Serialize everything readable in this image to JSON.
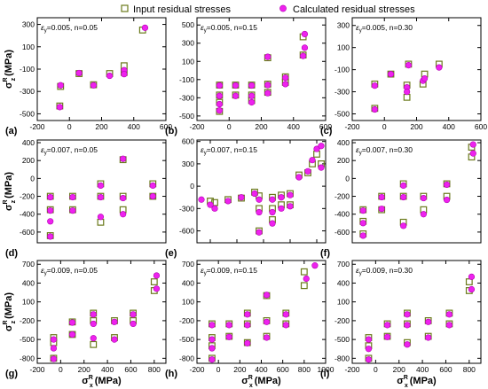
{
  "legend": {
    "input_label": "Input residual stresses",
    "calc_label": "Calculated residual stresses"
  },
  "colors": {
    "input_marker": "#6b7a1c",
    "calc_marker": "#ee22ee"
  },
  "axis_labels": {
    "y": {
      "main": "σ",
      "sup": "R",
      "sub": "z",
      "unit": "(MPa)"
    },
    "x": {
      "main": "σ",
      "sup": "R",
      "sub": "x",
      "unit": "(MPa)"
    }
  },
  "chart_data": [
    {
      "panel": "(a)",
      "type": "scatter",
      "annotation": {
        "eps_sym": "ε",
        "eps_sub": "y",
        "text": "=0.005, n=0.05"
      },
      "xlim": [
        -200,
        600
      ],
      "ylim": [
        -560,
        360
      ],
      "xticks": [
        -200,
        0,
        200,
        400,
        600
      ],
      "yticks": [
        -500,
        -300,
        -100,
        100,
        300
      ],
      "show_xticklabels": true,
      "input": [
        [
          -60,
          -430
        ],
        [
          -55,
          -255
        ],
        [
          60,
          -140
        ],
        [
          150,
          -240
        ],
        [
          250,
          -140
        ],
        [
          340,
          -70
        ],
        [
          340,
          -130
        ],
        [
          455,
          250
        ]
      ],
      "calculated": [
        [
          -60,
          -440
        ],
        [
          -55,
          -245
        ],
        [
          60,
          -135
        ],
        [
          150,
          -245
        ],
        [
          250,
          -160
        ],
        [
          340,
          -110
        ],
        [
          340,
          -145
        ],
        [
          470,
          270
        ]
      ]
    },
    {
      "panel": "(b)",
      "type": "scatter",
      "annotation": {
        "eps_sym": "ε",
        "eps_sub": "y",
        "text": "=0.005, n=0.15"
      },
      "xlim": [
        -200,
        600
      ],
      "ylim": [
        -550,
        580
      ],
      "xticks": [
        -200,
        0,
        200,
        400,
        600
      ],
      "yticks": [
        -500,
        -300,
        -100,
        100,
        300,
        500
      ],
      "show_xticklabels": true,
      "input": [
        [
          -60,
          -160
        ],
        [
          -60,
          -270
        ],
        [
          -60,
          -350
        ],
        [
          -60,
          -450
        ],
        [
          40,
          -160
        ],
        [
          40,
          -270
        ],
        [
          140,
          -160
        ],
        [
          140,
          -270
        ],
        [
          140,
          -330
        ],
        [
          240,
          -150
        ],
        [
          240,
          -240
        ],
        [
          240,
          140
        ],
        [
          350,
          -130
        ],
        [
          350,
          -70
        ],
        [
          460,
          370
        ],
        [
          460,
          170
        ]
      ],
      "calculated": [
        [
          -60,
          -165
        ],
        [
          -60,
          -280
        ],
        [
          -60,
          -370
        ],
        [
          -60,
          -440
        ],
        [
          40,
          -165
        ],
        [
          40,
          -280
        ],
        [
          140,
          -165
        ],
        [
          140,
          -280
        ],
        [
          140,
          -350
        ],
        [
          240,
          -160
        ],
        [
          240,
          -250
        ],
        [
          240,
          150
        ],
        [
          350,
          -150
        ],
        [
          350,
          -80
        ],
        [
          470,
          400
        ],
        [
          470,
          250
        ],
        [
          460,
          160
        ]
      ]
    },
    {
      "panel": "(c)",
      "type": "scatter",
      "annotation": {
        "eps_sym": "ε",
        "eps_sub": "y",
        "text": "=0.005, n=0.30"
      },
      "xlim": [
        -200,
        600
      ],
      "ylim": [
        -560,
        370
      ],
      "xticks": [
        -200,
        0,
        200,
        400,
        600
      ],
      "yticks": [
        -500,
        -300,
        -100,
        100,
        300
      ],
      "show_xticklabels": true,
      "input": [
        [
          -60,
          -450
        ],
        [
          -60,
          -230
        ],
        [
          40,
          -140
        ],
        [
          140,
          -240
        ],
        [
          140,
          -350
        ],
        [
          150,
          -50
        ],
        [
          240,
          -230
        ],
        [
          250,
          -140
        ],
        [
          340,
          -50
        ]
      ],
      "calculated": [
        [
          -60,
          -460
        ],
        [
          -60,
          -245
        ],
        [
          40,
          -140
        ],
        [
          140,
          -260
        ],
        [
          140,
          -300
        ],
        [
          150,
          -60
        ],
        [
          240,
          -200
        ],
        [
          250,
          -180
        ],
        [
          340,
          -80
        ]
      ]
    },
    {
      "panel": "(d)",
      "type": "scatter",
      "annotation": {
        "eps_sym": "ε",
        "eps_sub": "y",
        "text": "=0.007, n=0.05"
      },
      "xlim": [
        -130,
        560
      ],
      "ylim": [
        -720,
        430
      ],
      "xticks": [],
      "yticks": [
        -600,
        -400,
        -200,
        0,
        200,
        400
      ],
      "show_xticklabels": false,
      "input": [
        [
          -60,
          -640
        ],
        [
          -60,
          -350
        ],
        [
          -60,
          -200
        ],
        [
          60,
          -200
        ],
        [
          60,
          -350
        ],
        [
          210,
          -60
        ],
        [
          210,
          -200
        ],
        [
          210,
          -490
        ],
        [
          330,
          -200
        ],
        [
          330,
          -350
        ],
        [
          330,
          210
        ],
        [
          490,
          -60
        ],
        [
          490,
          -200
        ]
      ],
      "calculated": [
        [
          -60,
          -650
        ],
        [
          -60,
          -480
        ],
        [
          -60,
          -360
        ],
        [
          -60,
          -210
        ],
        [
          60,
          -210
        ],
        [
          60,
          -360
        ],
        [
          210,
          -80
        ],
        [
          210,
          -210
        ],
        [
          210,
          -430
        ],
        [
          330,
          -220
        ],
        [
          330,
          -400
        ],
        [
          330,
          220
        ],
        [
          490,
          -80
        ],
        [
          490,
          -200
        ]
      ]
    },
    {
      "panel": "(e)",
      "type": "scatter",
      "annotation": {
        "eps_sym": "ε",
        "eps_sub": "y",
        "text": "=0.007, n=0.15"
      },
      "xlim": [
        -750,
        700
      ],
      "ylim": [
        -760,
        620
      ],
      "xticks": [
        -600,
        -300,
        0,
        300,
        600
      ],
      "yticks": [
        -600,
        -300,
        0,
        300,
        600
      ],
      "show_xticklabels": false,
      "input": [
        [
          -600,
          -200
        ],
        [
          -550,
          -220
        ],
        [
          -400,
          -180
        ],
        [
          -250,
          -160
        ],
        [
          -100,
          -80
        ],
        [
          -50,
          -130
        ],
        [
          -50,
          -300
        ],
        [
          -50,
          -600
        ],
        [
          100,
          -150
        ],
        [
          100,
          -300
        ],
        [
          100,
          -450
        ],
        [
          200,
          -120
        ],
        [
          200,
          -250
        ],
        [
          300,
          -100
        ],
        [
          300,
          -250
        ],
        [
          400,
          150
        ],
        [
          500,
          180
        ],
        [
          550,
          300
        ],
        [
          600,
          430
        ],
        [
          650,
          300
        ]
      ],
      "calculated": [
        [
          -700,
          -180
        ],
        [
          -600,
          -250
        ],
        [
          -550,
          -300
        ],
        [
          -400,
          -200
        ],
        [
          -250,
          -150
        ],
        [
          -100,
          -100
        ],
        [
          -50,
          -180
        ],
        [
          -50,
          -350
        ],
        [
          -50,
          -620
        ],
        [
          100,
          -180
        ],
        [
          100,
          -350
        ],
        [
          100,
          -500
        ],
        [
          200,
          -150
        ],
        [
          200,
          -300
        ],
        [
          300,
          -120
        ],
        [
          300,
          -270
        ],
        [
          400,
          120
        ],
        [
          500,
          200
        ],
        [
          550,
          350
        ],
        [
          600,
          500
        ],
        [
          650,
          540
        ],
        [
          650,
          250
        ]
      ]
    },
    {
      "panel": "(f)",
      "type": "scatter",
      "annotation": {
        "eps_sym": "ε",
        "eps_sub": "y",
        "text": "=0.007, n=0.30"
      },
      "xlim": [
        -130,
        700
      ],
      "ylim": [
        -720,
        430
      ],
      "xticks": [],
      "yticks": [
        -600,
        -400,
        -200,
        0,
        200,
        400
      ],
      "show_xticklabels": false,
      "input": [
        [
          -60,
          -620
        ],
        [
          -60,
          -480
        ],
        [
          -60,
          -350
        ],
        [
          60,
          -200
        ],
        [
          60,
          -350
        ],
        [
          200,
          -60
        ],
        [
          200,
          -200
        ],
        [
          200,
          -490
        ],
        [
          330,
          -200
        ],
        [
          330,
          -350
        ],
        [
          480,
          -60
        ],
        [
          480,
          -200
        ],
        [
          640,
          240
        ],
        [
          640,
          350
        ]
      ],
      "calculated": [
        [
          -60,
          -640
        ],
        [
          -60,
          -500
        ],
        [
          -60,
          -360
        ],
        [
          60,
          -210
        ],
        [
          60,
          -340
        ],
        [
          200,
          -80
        ],
        [
          200,
          -210
        ],
        [
          200,
          -530
        ],
        [
          330,
          -220
        ],
        [
          330,
          -400
        ],
        [
          480,
          -70
        ],
        [
          480,
          -240
        ],
        [
          650,
          280
        ],
        [
          650,
          380
        ]
      ]
    },
    {
      "panel": "(g)",
      "type": "scatter",
      "annotation": {
        "eps_sym": "ε",
        "eps_sub": "y",
        "text": "=0.009, n=0.05"
      },
      "xlim": [
        -200,
        900
      ],
      "ylim": [
        -880,
        760
      ],
      "xticks": [
        -200,
        0,
        200,
        400,
        600,
        800
      ],
      "yticks": [
        -800,
        -500,
        -200,
        100,
        400,
        700
      ],
      "show_xticklabels": true,
      "input": [
        [
          -60,
          -800
        ],
        [
          -60,
          -550
        ],
        [
          -60,
          -470
        ],
        [
          100,
          -220
        ],
        [
          100,
          -420
        ],
        [
          280,
          -80
        ],
        [
          280,
          -200
        ],
        [
          280,
          -580
        ],
        [
          460,
          -200
        ],
        [
          460,
          -470
        ],
        [
          620,
          -80
        ],
        [
          620,
          -200
        ],
        [
          800,
          280
        ],
        [
          800,
          420
        ]
      ],
      "calculated": [
        [
          -60,
          -810
        ],
        [
          -60,
          -640
        ],
        [
          -60,
          -500
        ],
        [
          100,
          -230
        ],
        [
          100,
          -420
        ],
        [
          280,
          -100
        ],
        [
          280,
          -250
        ],
        [
          280,
          -480
        ],
        [
          460,
          -220
        ],
        [
          460,
          -500
        ],
        [
          620,
          -100
        ],
        [
          620,
          -250
        ],
        [
          820,
          310
        ],
        [
          820,
          520
        ]
      ]
    },
    {
      "panel": "(h)",
      "type": "scatter",
      "annotation": {
        "eps_sym": "ε",
        "eps_sub": "y",
        "text": "=0.009, n=0.15"
      },
      "xlim": [
        -200,
        1000
      ],
      "ylim": [
        -880,
        760
      ],
      "xticks": [
        -200,
        0,
        200,
        400,
        600,
        800,
        1000
      ],
      "yticks": [
        -800,
        -500,
        -200,
        100,
        400,
        700
      ],
      "show_xticklabels": true,
      "input": [
        [
          -60,
          -800
        ],
        [
          -60,
          -600
        ],
        [
          -60,
          -470
        ],
        [
          -60,
          -250
        ],
        [
          100,
          -250
        ],
        [
          100,
          -450
        ],
        [
          270,
          -80
        ],
        [
          270,
          -250
        ],
        [
          270,
          -550
        ],
        [
          450,
          -200
        ],
        [
          450,
          -450
        ],
        [
          450,
          200
        ],
        [
          630,
          -80
        ],
        [
          630,
          -250
        ],
        [
          800,
          360
        ],
        [
          800,
          580
        ]
      ],
      "calculated": [
        [
          -60,
          -820
        ],
        [
          -60,
          -640
        ],
        [
          -60,
          -500
        ],
        [
          -60,
          -270
        ],
        [
          100,
          -270
        ],
        [
          100,
          -460
        ],
        [
          270,
          -100
        ],
        [
          270,
          -270
        ],
        [
          270,
          -560
        ],
        [
          450,
          -220
        ],
        [
          450,
          -470
        ],
        [
          450,
          210
        ],
        [
          630,
          -100
        ],
        [
          630,
          -270
        ],
        [
          820,
          470
        ],
        [
          900,
          680
        ]
      ]
    },
    {
      "panel": "(i)",
      "type": "scatter",
      "annotation": {
        "eps_sym": "ε",
        "eps_sub": "y",
        "text": "=0.009, n=0.30"
      },
      "xlim": [
        -200,
        900
      ],
      "ylim": [
        -880,
        760
      ],
      "xticks": [
        -200,
        0,
        200,
        400,
        600,
        800
      ],
      "yticks": [
        -800,
        -500,
        -200,
        100,
        400,
        700
      ],
      "show_xticklabels": true,
      "input": [
        [
          -60,
          -800
        ],
        [
          -60,
          -600
        ],
        [
          -60,
          -470
        ],
        [
          100,
          -250
        ],
        [
          100,
          -450
        ],
        [
          270,
          -80
        ],
        [
          270,
          -250
        ],
        [
          270,
          -550
        ],
        [
          450,
          -200
        ],
        [
          450,
          -450
        ],
        [
          630,
          -80
        ],
        [
          630,
          -250
        ],
        [
          800,
          280
        ],
        [
          800,
          420
        ]
      ],
      "calculated": [
        [
          -60,
          -820
        ],
        [
          -60,
          -650
        ],
        [
          -60,
          -500
        ],
        [
          100,
          -270
        ],
        [
          100,
          -460
        ],
        [
          270,
          -100
        ],
        [
          270,
          -270
        ],
        [
          270,
          -580
        ],
        [
          450,
          -220
        ],
        [
          450,
          -470
        ],
        [
          630,
          -100
        ],
        [
          630,
          -270
        ],
        [
          820,
          300
        ],
        [
          820,
          500
        ]
      ]
    }
  ]
}
